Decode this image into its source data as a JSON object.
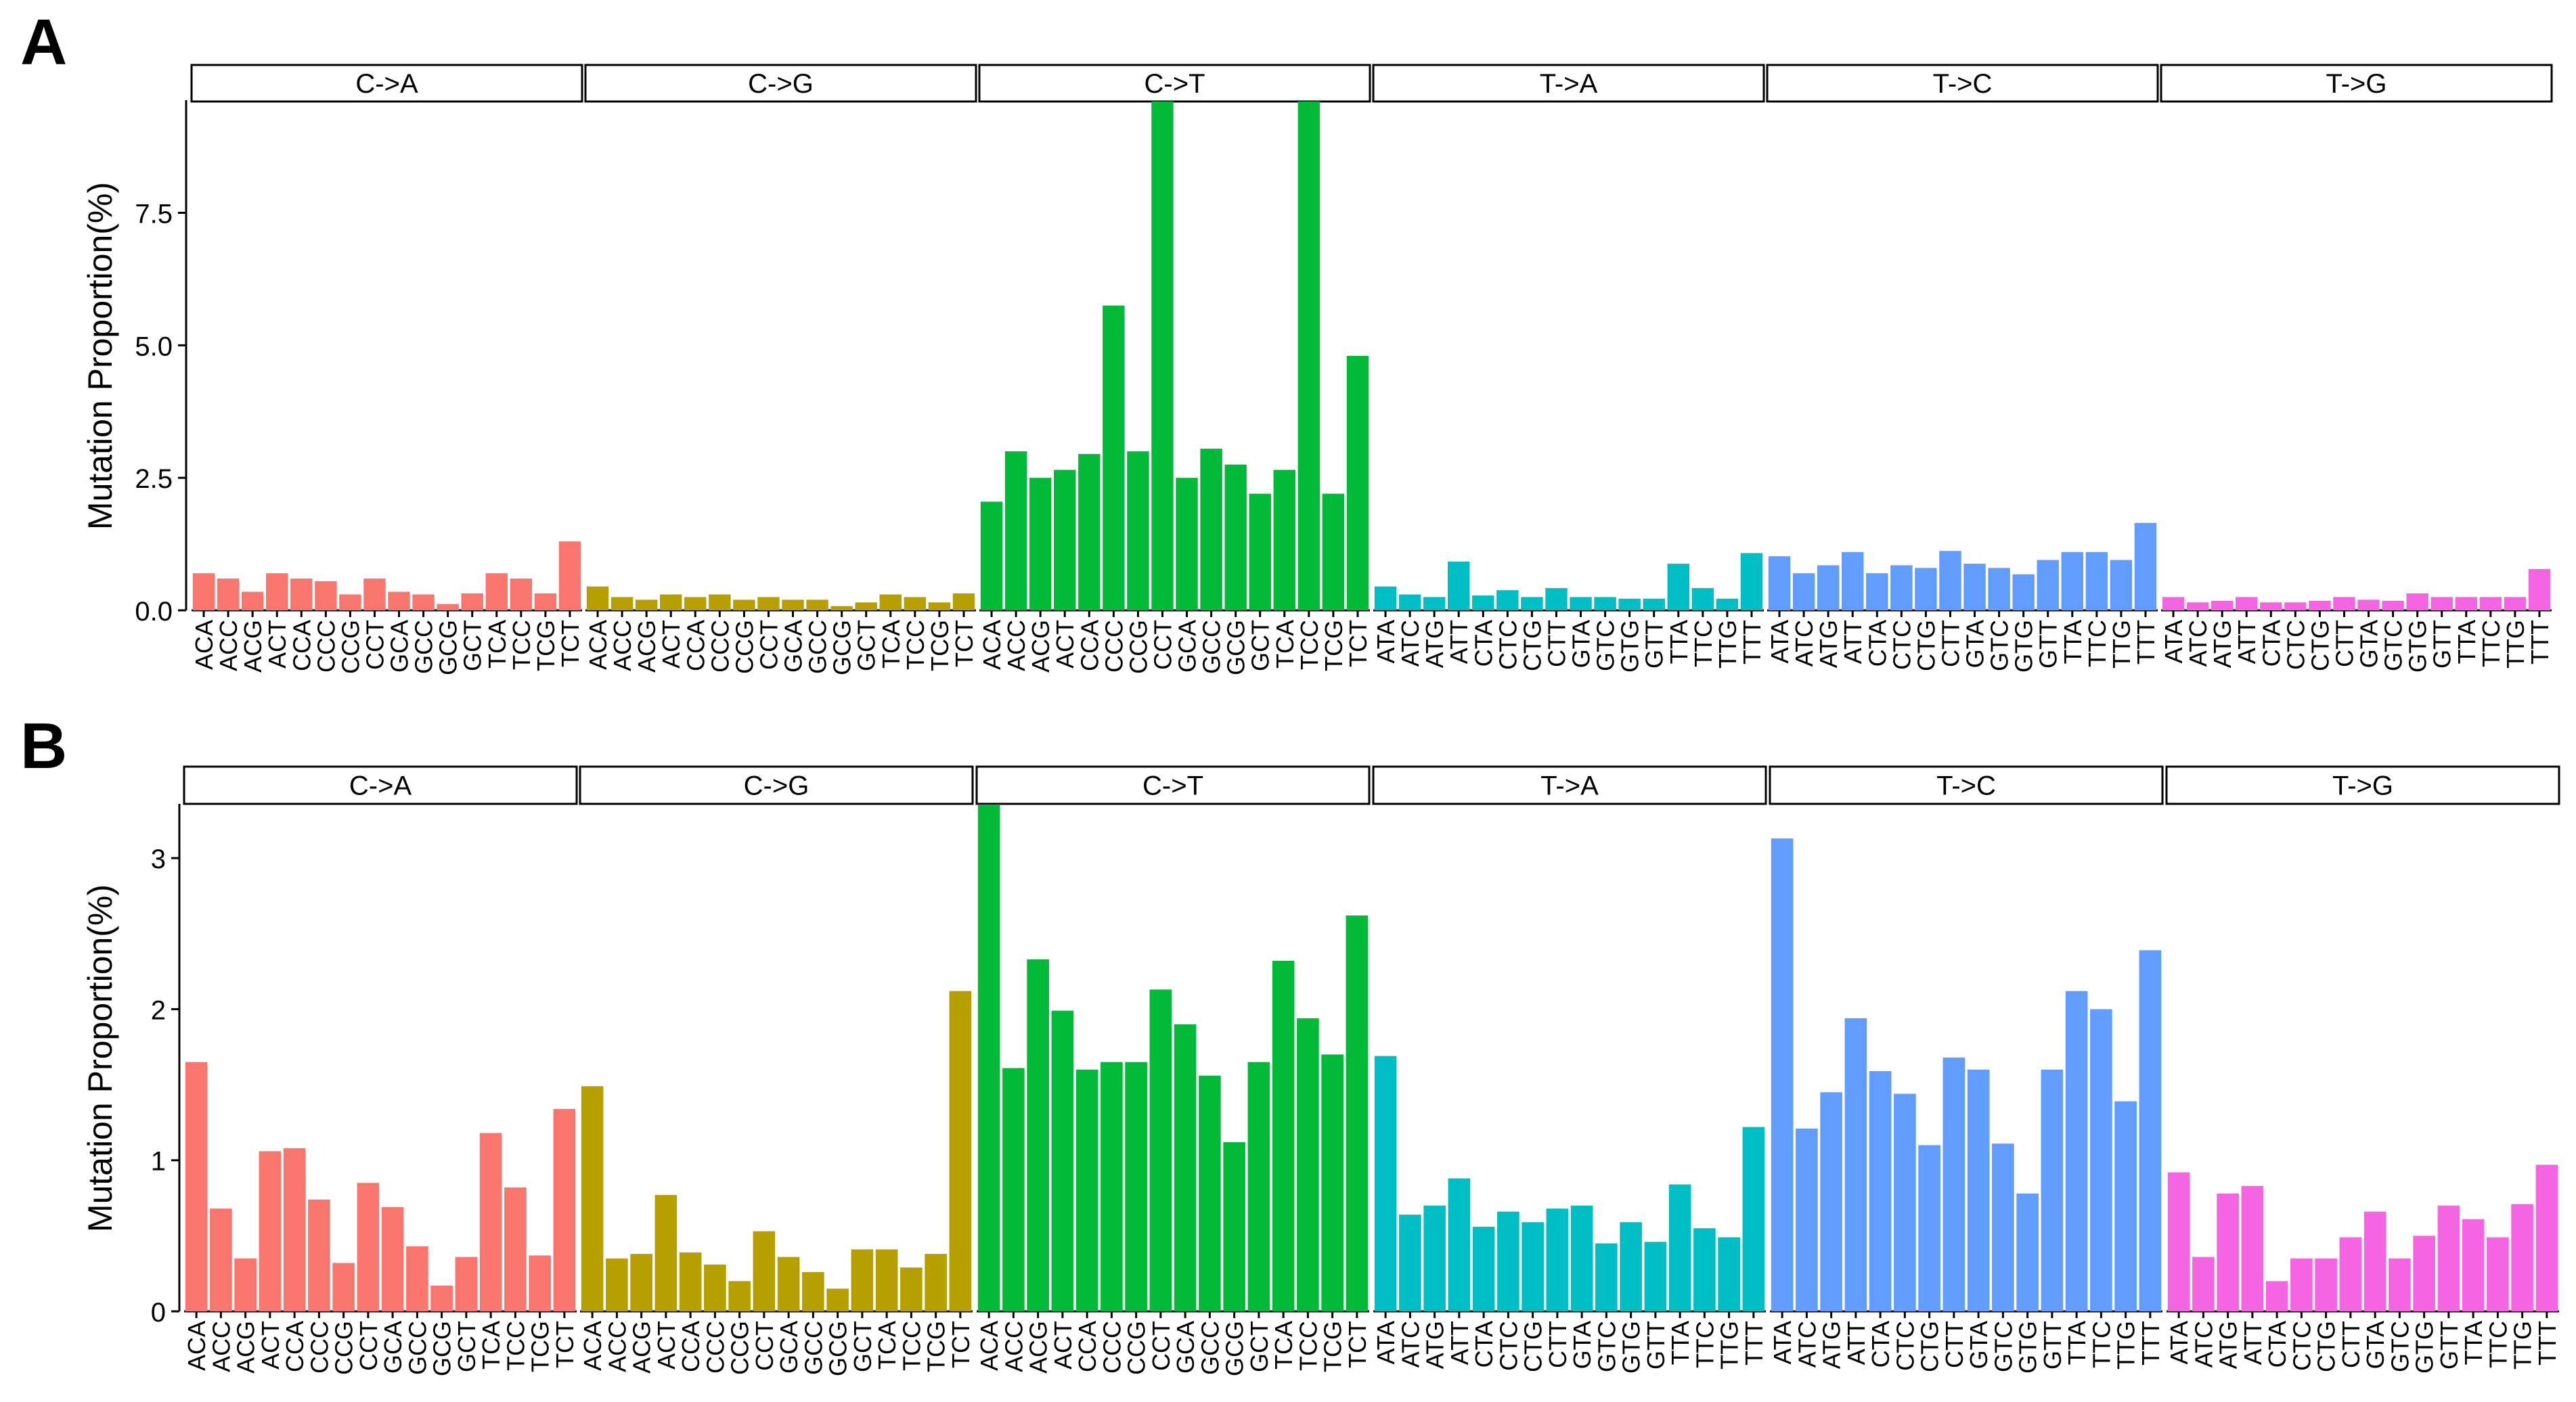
{
  "chart_data": [
    {
      "type": "bar",
      "panel_label": "A",
      "ylabel": "Mutation Proportion(%)",
      "ylim": [
        0,
        9.6
      ],
      "yticks": [
        0.0,
        2.5,
        5.0,
        7.5
      ],
      "ytick_labels": [
        "0.0",
        "2.5",
        "5.0",
        "7.5"
      ],
      "facets": [
        {
          "label": "C->A",
          "color": "#F8766D",
          "categories": [
            "ACA",
            "ACC",
            "ACG",
            "ACT",
            "CCA",
            "CCC",
            "CCG",
            "CCT",
            "GCA",
            "GCC",
            "GCG",
            "GCT",
            "TCA",
            "TCC",
            "TCG",
            "TCT"
          ],
          "values": [
            0.7,
            0.6,
            0.35,
            0.7,
            0.6,
            0.55,
            0.3,
            0.6,
            0.35,
            0.3,
            0.12,
            0.32,
            0.7,
            0.6,
            0.32,
            1.3
          ]
        },
        {
          "label": "C->G",
          "color": "#B79F00",
          "categories": [
            "ACA",
            "ACC",
            "ACG",
            "ACT",
            "CCA",
            "CCC",
            "CCG",
            "CCT",
            "GCA",
            "GCC",
            "GCG",
            "GCT",
            "TCA",
            "TCC",
            "TCG",
            "TCT"
          ],
          "values": [
            0.45,
            0.25,
            0.2,
            0.3,
            0.25,
            0.3,
            0.2,
            0.25,
            0.2,
            0.2,
            0.08,
            0.15,
            0.3,
            0.25,
            0.15,
            0.32
          ]
        },
        {
          "label": "C->T",
          "color": "#00BA38",
          "categories": [
            "ACA",
            "ACC",
            "ACG",
            "ACT",
            "CCA",
            "CCC",
            "CCG",
            "CCT",
            "GCA",
            "GCC",
            "GCG",
            "GCT",
            "TCA",
            "TCC",
            "TCG",
            "TCT"
          ],
          "values": [
            2.05,
            3.0,
            2.5,
            2.65,
            2.95,
            5.75,
            3.0,
            9.6,
            2.5,
            3.05,
            2.75,
            2.2,
            2.65,
            9.6,
            2.2,
            4.8
          ]
        },
        {
          "label": "T->A",
          "color": "#00BFC4",
          "categories": [
            "ATA",
            "ATC",
            "ATG",
            "ATT",
            "CTA",
            "CTC",
            "CTG",
            "CTT",
            "GTA",
            "GTC",
            "GTG",
            "GTT",
            "TTA",
            "TTC",
            "TTG",
            "TTT"
          ],
          "values": [
            0.45,
            0.3,
            0.25,
            0.92,
            0.28,
            0.38,
            0.25,
            0.42,
            0.25,
            0.25,
            0.22,
            0.22,
            0.88,
            0.42,
            0.22,
            1.08
          ]
        },
        {
          "label": "T->C",
          "color": "#619CFF",
          "categories": [
            "ATA",
            "ATC",
            "ATG",
            "ATT",
            "CTA",
            "CTC",
            "CTG",
            "CTT",
            "GTA",
            "GTC",
            "GTG",
            "GTT",
            "TTA",
            "TTC",
            "TTG",
            "TTT"
          ],
          "values": [
            1.02,
            0.7,
            0.85,
            1.1,
            0.7,
            0.85,
            0.8,
            1.12,
            0.88,
            0.8,
            0.68,
            0.95,
            1.1,
            1.1,
            0.95,
            1.65
          ]
        },
        {
          "label": "T->G",
          "color": "#F564E3",
          "categories": [
            "ATA",
            "ATC",
            "ATG",
            "ATT",
            "CTA",
            "CTC",
            "CTG",
            "CTT",
            "GTA",
            "GTC",
            "GTG",
            "GTT",
            "TTA",
            "TTC",
            "TTG",
            "TTT"
          ],
          "values": [
            0.25,
            0.15,
            0.18,
            0.25,
            0.15,
            0.15,
            0.18,
            0.25,
            0.2,
            0.18,
            0.32,
            0.25,
            0.25,
            0.25,
            0.25,
            0.78
          ]
        }
      ]
    },
    {
      "type": "bar",
      "panel_label": "B",
      "ylabel": "Mutation Proportion(%)",
      "ylim": [
        0,
        3.35
      ],
      "yticks": [
        0,
        1,
        2,
        3
      ],
      "ytick_labels": [
        "0",
        "1",
        "2",
        "3"
      ],
      "facets": [
        {
          "label": "C->A",
          "color": "#F8766D",
          "categories": [
            "ACA",
            "ACC",
            "ACG",
            "ACT",
            "CCA",
            "CCC",
            "CCG",
            "CCT",
            "GCA",
            "GCC",
            "GCG",
            "GCT",
            "TCA",
            "TCC",
            "TCG",
            "TCT"
          ],
          "values": [
            1.65,
            0.68,
            0.35,
            1.06,
            1.08,
            0.74,
            0.32,
            0.85,
            0.69,
            0.43,
            0.17,
            0.36,
            1.18,
            0.82,
            0.37,
            1.34
          ]
        },
        {
          "label": "C->G",
          "color": "#B79F00",
          "categories": [
            "ACA",
            "ACC",
            "ACG",
            "ACT",
            "CCA",
            "CCC",
            "CCG",
            "CCT",
            "GCA",
            "GCC",
            "GCG",
            "GCT",
            "TCA",
            "TCC",
            "TCG",
            "TCT"
          ],
          "values": [
            1.49,
            0.35,
            0.38,
            0.77,
            0.39,
            0.31,
            0.2,
            0.53,
            0.36,
            0.26,
            0.15,
            0.41,
            0.41,
            0.29,
            0.38,
            2.12
          ]
        },
        {
          "label": "C->T",
          "color": "#00BA38",
          "categories": [
            "ACA",
            "ACC",
            "ACG",
            "ACT",
            "CCA",
            "CCC",
            "CCG",
            "CCT",
            "GCA",
            "GCC",
            "GCG",
            "GCT",
            "TCA",
            "TCC",
            "TCG",
            "TCT"
          ],
          "values": [
            3.35,
            1.61,
            2.33,
            1.99,
            1.6,
            1.65,
            1.65,
            2.13,
            1.9,
            1.56,
            1.12,
            1.65,
            2.32,
            1.94,
            1.7,
            2.62
          ]
        },
        {
          "label": "T->A",
          "color": "#00BFC4",
          "categories": [
            "ATA",
            "ATC",
            "ATG",
            "ATT",
            "CTA",
            "CTC",
            "CTG",
            "CTT",
            "GTA",
            "GTC",
            "GTG",
            "GTT",
            "TTA",
            "TTC",
            "TTG",
            "TTT"
          ],
          "values": [
            1.69,
            0.64,
            0.7,
            0.88,
            0.56,
            0.66,
            0.59,
            0.68,
            0.7,
            0.45,
            0.59,
            0.46,
            0.84,
            0.55,
            0.49,
            1.22
          ]
        },
        {
          "label": "T->C",
          "color": "#619CFF",
          "categories": [
            "ATA",
            "ATC",
            "ATG",
            "ATT",
            "CTA",
            "CTC",
            "CTG",
            "CTT",
            "GTA",
            "GTC",
            "GTG",
            "GTT",
            "TTA",
            "TTC",
            "TTG",
            "TTT"
          ],
          "values": [
            3.13,
            1.21,
            1.45,
            1.94,
            1.59,
            1.44,
            1.1,
            1.68,
            1.6,
            1.11,
            0.78,
            1.6,
            2.12,
            2.0,
            1.39,
            2.39
          ]
        },
        {
          "label": "T->G",
          "color": "#F564E3",
          "categories": [
            "ATA",
            "ATC",
            "ATG",
            "ATT",
            "CTA",
            "CTC",
            "CTG",
            "CTT",
            "GTA",
            "GTC",
            "GTG",
            "GTT",
            "TTA",
            "TTC",
            "TTG",
            "TTT"
          ],
          "values": [
            0.92,
            0.36,
            0.78,
            0.83,
            0.2,
            0.35,
            0.35,
            0.49,
            0.66,
            0.35,
            0.5,
            0.7,
            0.61,
            0.49,
            0.71,
            0.97
          ]
        }
      ]
    }
  ]
}
